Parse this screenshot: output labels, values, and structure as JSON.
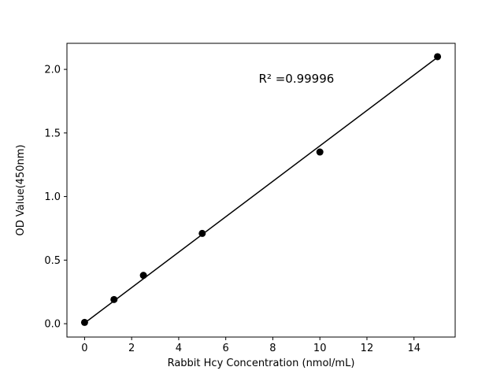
{
  "chart_data": {
    "type": "scatter",
    "title": "",
    "xlabel": "Rabbit Hcy Concentration (nmol/mL)",
    "ylabel": "OD Value(450nm)",
    "xlim": [
      -0.75,
      15.75
    ],
    "ylim": [
      -0.105,
      2.205
    ],
    "xticks": [
      0,
      2,
      4,
      6,
      8,
      10,
      12,
      14
    ],
    "xtick_labels": [
      "0",
      "2",
      "4",
      "6",
      "8",
      "10",
      "12",
      "14"
    ],
    "yticks": [
      0.0,
      0.5,
      1.0,
      1.5,
      2.0
    ],
    "ytick_labels": [
      "0.0",
      "0.5",
      "1.0",
      "1.5",
      "2.0"
    ],
    "grid": false,
    "legend": "none",
    "series": [
      {
        "name": "standards",
        "x": [
          0,
          1.25,
          2.5,
          5,
          10,
          15
        ],
        "y": [
          0.01,
          0.19,
          0.38,
          0.71,
          1.35,
          2.1
        ]
      }
    ],
    "fit_line": {
      "x": [
        0,
        15
      ],
      "y": [
        0.005,
        2.095
      ]
    },
    "annotation": {
      "text": "R² =0.99996",
      "x": 7.4,
      "y": 1.895
    },
    "colors": {
      "marker": "#000000",
      "line": "#000000",
      "axis": "#000000",
      "background": "#ffffff"
    }
  }
}
